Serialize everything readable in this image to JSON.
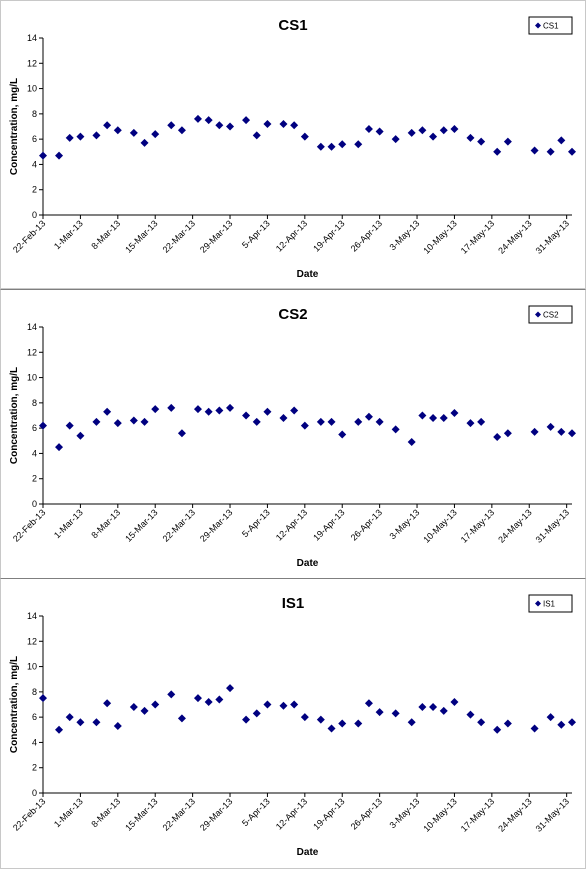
{
  "chart_data": [
    {
      "type": "scatter",
      "title": "CS1",
      "xlabel": "Date",
      "ylabel": "Concentration, mg/L",
      "ylim": [
        0,
        14
      ],
      "yticks": [
        0,
        2,
        4,
        6,
        8,
        10,
        12,
        14
      ],
      "xlim": [
        "2013-02-22",
        "2013-06-01"
      ],
      "xtick_labels": [
        "22-Feb-13",
        "1-Mar-13",
        "8-Mar-13",
        "15-Mar-13",
        "22-Mar-13",
        "29-Mar-13",
        "5-Apr-13",
        "12-Apr-13",
        "19-Apr-13",
        "26-Apr-13",
        "3-May-13",
        "10-May-13",
        "17-May-13",
        "24-May-13",
        "31-May-13"
      ],
      "grid": false,
      "legend": "top-right",
      "marker_color": "#000080",
      "series": [
        {
          "name": "CS1",
          "points": [
            [
              "2013-02-22",
              4.7
            ],
            [
              "2013-02-25",
              4.7
            ],
            [
              "2013-02-27",
              6.1
            ],
            [
              "2013-03-01",
              6.2
            ],
            [
              "2013-03-04",
              6.3
            ],
            [
              "2013-03-06",
              7.1
            ],
            [
              "2013-03-08",
              6.7
            ],
            [
              "2013-03-11",
              6.5
            ],
            [
              "2013-03-13",
              5.7
            ],
            [
              "2013-03-15",
              6.4
            ],
            [
              "2013-03-18",
              7.1
            ],
            [
              "2013-03-20",
              6.7
            ],
            [
              "2013-03-23",
              7.6
            ],
            [
              "2013-03-25",
              7.5
            ],
            [
              "2013-03-27",
              7.1
            ],
            [
              "2013-03-29",
              7.0
            ],
            [
              "2013-04-01",
              7.5
            ],
            [
              "2013-04-03",
              6.3
            ],
            [
              "2013-04-05",
              7.2
            ],
            [
              "2013-04-08",
              7.2
            ],
            [
              "2013-04-10",
              7.1
            ],
            [
              "2013-04-12",
              6.2
            ],
            [
              "2013-04-15",
              5.4
            ],
            [
              "2013-04-17",
              5.4
            ],
            [
              "2013-04-19",
              5.6
            ],
            [
              "2013-04-22",
              5.6
            ],
            [
              "2013-04-24",
              6.8
            ],
            [
              "2013-04-26",
              6.6
            ],
            [
              "2013-04-29",
              6.0
            ],
            [
              "2013-05-02",
              6.5
            ],
            [
              "2013-05-04",
              6.7
            ],
            [
              "2013-05-06",
              6.2
            ],
            [
              "2013-05-08",
              6.7
            ],
            [
              "2013-05-10",
              6.8
            ],
            [
              "2013-05-13",
              6.1
            ],
            [
              "2013-05-15",
              5.8
            ],
            [
              "2013-05-18",
              5.0
            ],
            [
              "2013-05-20",
              5.8
            ],
            [
              "2013-05-25",
              5.1
            ],
            [
              "2013-05-28",
              5.0
            ],
            [
              "2013-05-30",
              5.9
            ],
            [
              "2013-06-01",
              5.0
            ]
          ]
        }
      ]
    },
    {
      "type": "scatter",
      "title": "CS2",
      "xlabel": "Date",
      "ylabel": "Concentration, mg/L",
      "ylim": [
        0,
        14
      ],
      "yticks": [
        0,
        2,
        4,
        6,
        8,
        10,
        12,
        14
      ],
      "xlim": [
        "2013-02-22",
        "2013-06-01"
      ],
      "xtick_labels": [
        "22-Feb-13",
        "1-Mar-13",
        "8-Mar-13",
        "15-Mar-13",
        "22-Mar-13",
        "29-Mar-13",
        "5-Apr-13",
        "12-Apr-13",
        "19-Apr-13",
        "26-Apr-13",
        "3-May-13",
        "10-May-13",
        "17-May-13",
        "24-May-13",
        "31-May-13"
      ],
      "grid": false,
      "legend": "top-right",
      "marker_color": "#000080",
      "series": [
        {
          "name": "CS2",
          "points": [
            [
              "2013-02-22",
              6.2
            ],
            [
              "2013-02-25",
              4.5
            ],
            [
              "2013-02-27",
              6.2
            ],
            [
              "2013-03-01",
              5.4
            ],
            [
              "2013-03-04",
              6.5
            ],
            [
              "2013-03-06",
              7.3
            ],
            [
              "2013-03-08",
              6.4
            ],
            [
              "2013-03-11",
              6.6
            ],
            [
              "2013-03-13",
              6.5
            ],
            [
              "2013-03-15",
              7.5
            ],
            [
              "2013-03-18",
              7.6
            ],
            [
              "2013-03-20",
              5.6
            ],
            [
              "2013-03-23",
              7.5
            ],
            [
              "2013-03-25",
              7.3
            ],
            [
              "2013-03-27",
              7.4
            ],
            [
              "2013-03-29",
              7.6
            ],
            [
              "2013-04-01",
              7.0
            ],
            [
              "2013-04-03",
              6.5
            ],
            [
              "2013-04-05",
              7.3
            ],
            [
              "2013-04-08",
              6.8
            ],
            [
              "2013-04-10",
              7.4
            ],
            [
              "2013-04-12",
              6.2
            ],
            [
              "2013-04-15",
              6.5
            ],
            [
              "2013-04-17",
              6.5
            ],
            [
              "2013-04-19",
              5.5
            ],
            [
              "2013-04-22",
              6.5
            ],
            [
              "2013-04-24",
              6.9
            ],
            [
              "2013-04-26",
              6.5
            ],
            [
              "2013-04-29",
              5.9
            ],
            [
              "2013-05-02",
              4.9
            ],
            [
              "2013-05-04",
              7.0
            ],
            [
              "2013-05-06",
              6.8
            ],
            [
              "2013-05-08",
              6.8
            ],
            [
              "2013-05-10",
              7.2
            ],
            [
              "2013-05-13",
              6.4
            ],
            [
              "2013-05-15",
              6.5
            ],
            [
              "2013-05-18",
              5.3
            ],
            [
              "2013-05-20",
              5.6
            ],
            [
              "2013-05-25",
              5.7
            ],
            [
              "2013-05-28",
              6.1
            ],
            [
              "2013-05-30",
              5.7
            ],
            [
              "2013-06-01",
              5.6
            ]
          ]
        }
      ]
    },
    {
      "type": "scatter",
      "title": "IS1",
      "xlabel": "Date",
      "ylabel": "Concentration, mg/L",
      "ylim": [
        0,
        14
      ],
      "yticks": [
        0,
        2,
        4,
        6,
        8,
        10,
        12,
        14
      ],
      "xlim": [
        "2013-02-22",
        "2013-06-01"
      ],
      "xtick_labels": [
        "22-Feb-13",
        "1-Mar-13",
        "8-Mar-13",
        "15-Mar-13",
        "22-Mar-13",
        "29-Mar-13",
        "5-Apr-13",
        "12-Apr-13",
        "19-Apr-13",
        "26-Apr-13",
        "3-May-13",
        "10-May-13",
        "17-May-13",
        "24-May-13",
        "31-May-13"
      ],
      "grid": false,
      "legend": "top-right",
      "marker_color": "#000080",
      "series": [
        {
          "name": "IS1",
          "points": [
            [
              "2013-02-22",
              7.5
            ],
            [
              "2013-02-25",
              5.0
            ],
            [
              "2013-02-27",
              6.0
            ],
            [
              "2013-03-01",
              5.6
            ],
            [
              "2013-03-04",
              5.6
            ],
            [
              "2013-03-06",
              7.1
            ],
            [
              "2013-03-08",
              5.3
            ],
            [
              "2013-03-11",
              6.8
            ],
            [
              "2013-03-13",
              6.5
            ],
            [
              "2013-03-15",
              7.0
            ],
            [
              "2013-03-18",
              7.8
            ],
            [
              "2013-03-20",
              5.9
            ],
            [
              "2013-03-23",
              7.5
            ],
            [
              "2013-03-25",
              7.2
            ],
            [
              "2013-03-27",
              7.4
            ],
            [
              "2013-03-29",
              8.3
            ],
            [
              "2013-04-01",
              5.8
            ],
            [
              "2013-04-03",
              6.3
            ],
            [
              "2013-04-05",
              7.0
            ],
            [
              "2013-04-08",
              6.9
            ],
            [
              "2013-04-10",
              7.0
            ],
            [
              "2013-04-12",
              6.0
            ],
            [
              "2013-04-15",
              5.8
            ],
            [
              "2013-04-17",
              5.1
            ],
            [
              "2013-04-19",
              5.5
            ],
            [
              "2013-04-22",
              5.5
            ],
            [
              "2013-04-24",
              7.1
            ],
            [
              "2013-04-26",
              6.4
            ],
            [
              "2013-04-29",
              6.3
            ],
            [
              "2013-05-02",
              5.6
            ],
            [
              "2013-05-04",
              6.8
            ],
            [
              "2013-05-06",
              6.8
            ],
            [
              "2013-05-08",
              6.5
            ],
            [
              "2013-05-10",
              7.2
            ],
            [
              "2013-05-13",
              6.2
            ],
            [
              "2013-05-15",
              5.6
            ],
            [
              "2013-05-18",
              5.0
            ],
            [
              "2013-05-20",
              5.5
            ],
            [
              "2013-05-25",
              5.1
            ],
            [
              "2013-05-28",
              6.0
            ],
            [
              "2013-05-30",
              5.4
            ],
            [
              "2013-06-01",
              5.6
            ]
          ]
        }
      ]
    }
  ]
}
